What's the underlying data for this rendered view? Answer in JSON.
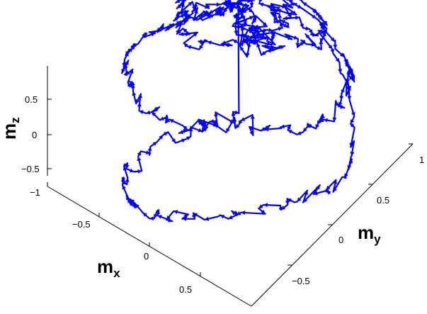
{
  "chart_data": {
    "type": "line",
    "projection": "3d",
    "title": "",
    "series_color": "#0000ff",
    "markers": "arrowheads along trajectory",
    "grid": false,
    "legend": "none",
    "axes": {
      "x": {
        "label": "m",
        "label_sub": "x",
        "ticks": [
          -1,
          -0.5,
          0,
          0.5
        ],
        "tick_labels": [
          "−1",
          "−0.5",
          "0",
          "0.5"
        ],
        "range": [
          -1,
          1
        ]
      },
      "y": {
        "label": "m",
        "label_sub": "y",
        "ticks": [
          -0.5,
          0,
          0.5,
          1
        ],
        "tick_labels": [
          "−0.5",
          "0",
          "0.5",
          "1"
        ],
        "range": [
          -1,
          1
        ]
      },
      "z": {
        "label": "m",
        "label_sub": "z",
        "ticks": [
          -0.5,
          0,
          0.5
        ],
        "tick_labels": [
          "−0.5",
          "0",
          "0.5"
        ],
        "range": [
          -0.6,
          0.9
        ]
      }
    },
    "description_of_series": "random-walk trajectory of a unit magnetization vector on the sphere |m| = 1, densely wandering over the upper hemisphere with a cluster near the north pole",
    "sample_points": [
      [
        0.0,
        0.0,
        1.0
      ],
      [
        0.12,
        0.05,
        0.99
      ],
      [
        0.25,
        -0.1,
        0.96
      ],
      [
        0.3,
        -0.3,
        0.9
      ],
      [
        0.1,
        -0.5,
        0.86
      ],
      [
        -0.2,
        -0.55,
        0.81
      ],
      [
        -0.5,
        -0.45,
        0.74
      ],
      [
        -0.72,
        -0.3,
        0.63
      ],
      [
        -0.85,
        0.0,
        0.52
      ],
      [
        -0.9,
        0.3,
        0.3
      ],
      [
        -0.8,
        0.55,
        0.2
      ],
      [
        -0.55,
        0.75,
        0.37
      ],
      [
        -0.3,
        0.9,
        0.3
      ],
      [
        0.05,
        0.95,
        0.3
      ],
      [
        0.35,
        0.85,
        0.4
      ],
      [
        0.6,
        0.65,
        0.45
      ],
      [
        0.8,
        0.4,
        0.45
      ],
      [
        0.9,
        0.1,
        0.42
      ],
      [
        0.85,
        -0.2,
        0.48
      ],
      [
        0.7,
        -0.5,
        0.5
      ],
      [
        0.45,
        -0.75,
        0.48
      ],
      [
        0.15,
        -0.9,
        0.4
      ],
      [
        -0.2,
        -0.92,
        0.33
      ],
      [
        -0.5,
        -0.8,
        0.33
      ],
      [
        -0.7,
        -0.6,
        0.38
      ],
      [
        -0.6,
        -0.3,
        0.74
      ],
      [
        -0.3,
        -0.1,
        0.95
      ],
      [
        0.0,
        0.2,
        0.98
      ],
      [
        0.3,
        0.3,
        0.9
      ],
      [
        0.5,
        0.1,
        0.86
      ],
      [
        0.45,
        -0.2,
        0.87
      ],
      [
        0.2,
        -0.3,
        0.93
      ],
      [
        0.05,
        0.1,
        0.99
      ],
      [
        0.1,
        0.35,
        0.93
      ],
      [
        -0.1,
        0.6,
        0.79
      ],
      [
        -0.4,
        0.6,
        0.69
      ],
      [
        -0.65,
        0.4,
        0.64
      ],
      [
        -0.75,
        0.1,
        0.65
      ],
      [
        -0.6,
        -0.1,
        0.79
      ],
      [
        -0.9,
        -0.2,
        0.38
      ],
      [
        -0.95,
        0.2,
        0.2
      ],
      [
        -0.7,
        0.65,
        -0.3
      ],
      [
        -0.3,
        0.9,
        -0.3
      ],
      [
        0.2,
        0.95,
        -0.2
      ],
      [
        0.55,
        0.8,
        -0.2
      ],
      [
        0.85,
        0.45,
        -0.25
      ],
      [
        0.95,
        0.0,
        -0.3
      ],
      [
        0.8,
        -0.4,
        -0.45
      ],
      [
        0.5,
        -0.7,
        -0.5
      ],
      [
        0.1,
        -0.85,
        -0.5
      ],
      [
        -0.35,
        -0.8,
        -0.5
      ],
      [
        -0.7,
        -0.55,
        -0.45
      ]
    ]
  }
}
